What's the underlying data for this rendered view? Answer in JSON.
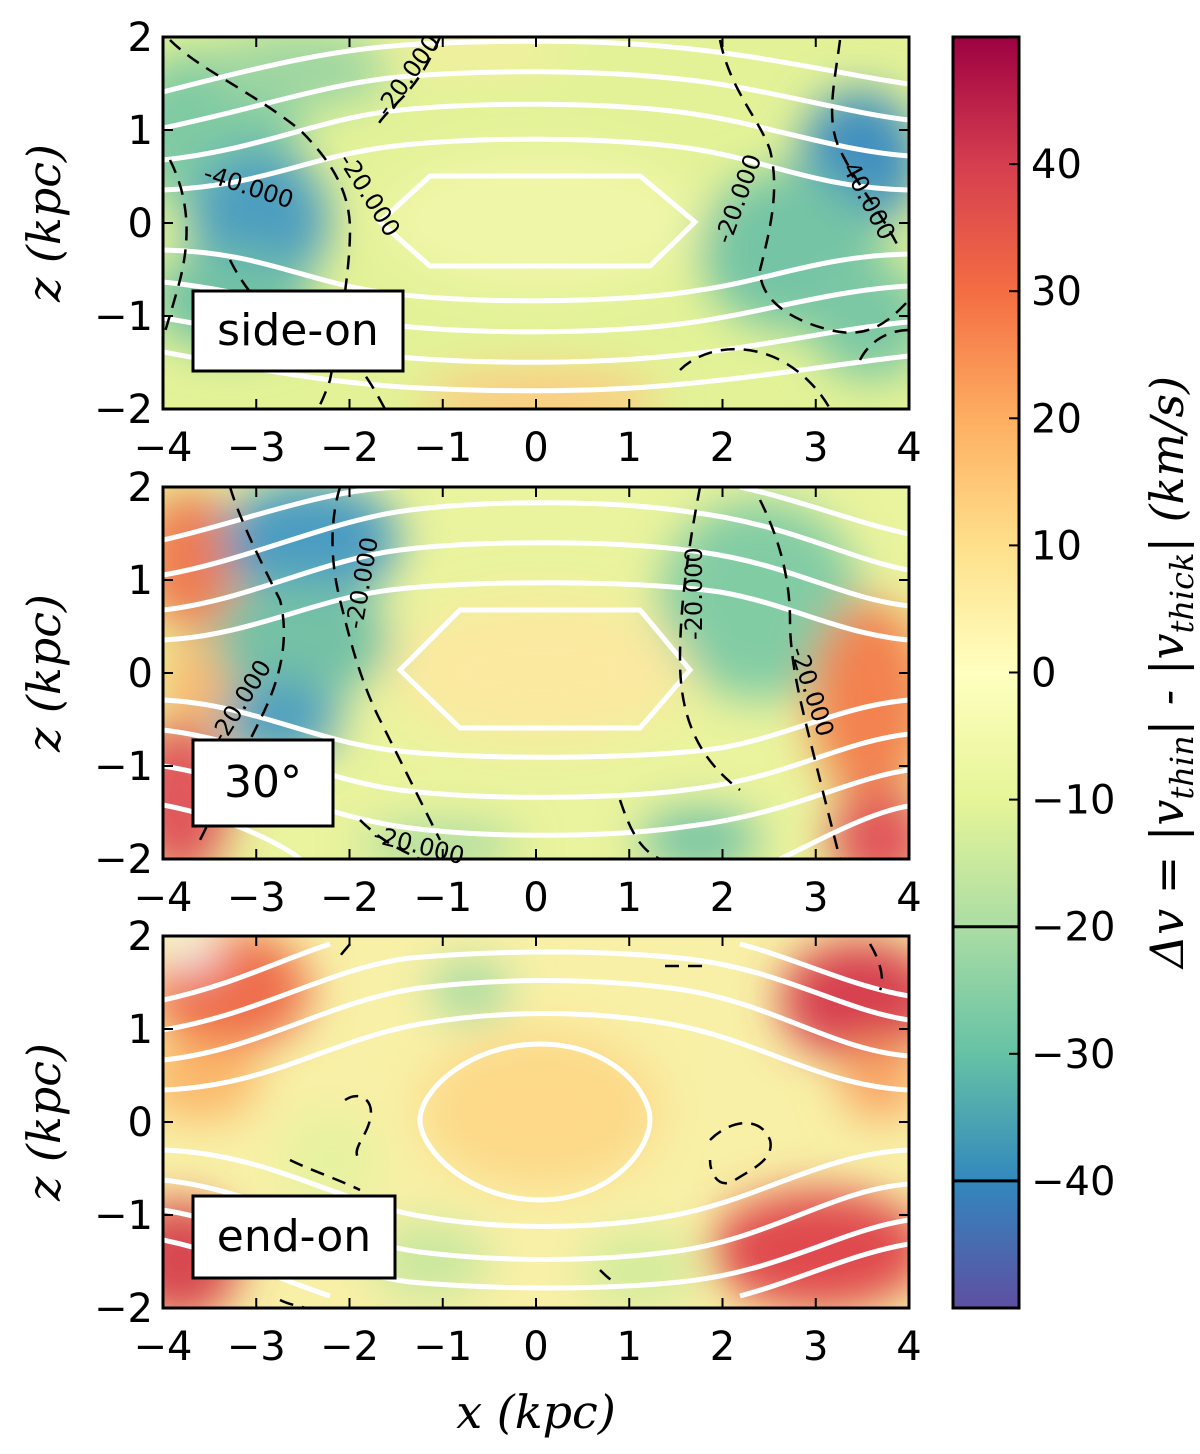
{
  "chart_data": {
    "type": "heatmap",
    "xlabel": "x (kpc)",
    "ylabel": "z (kpc)",
    "xlim": [
      -4,
      4
    ],
    "ylim": [
      -2,
      2
    ],
    "x_ticks": [
      "−4",
      "−3",
      "−2",
      "−1",
      "0",
      "1",
      "2",
      "3",
      "4"
    ],
    "y_ticks": [
      "−2",
      "−1",
      "0",
      "1",
      "2"
    ],
    "colorbar": {
      "label": "Δv = |v_thin| - |v_thick| (km/s)",
      "label_parts": [
        "Δv = |v",
        "thin",
        "| - |v",
        "thick",
        "| (km/s)"
      ],
      "range": [
        -50,
        50
      ],
      "ticks": [
        "40",
        "30",
        "20",
        "10",
        "0",
        "−10",
        "−20",
        "−30",
        "−40"
      ],
      "tick_values": [
        40,
        30,
        20,
        10,
        0,
        -10,
        -20,
        -30,
        -40
      ],
      "contour_levels": [
        -20,
        -40
      ],
      "colormap": [
        "#5e4fa2",
        "#3288bd",
        "#66c2a5",
        "#abdda4",
        "#e6f598",
        "#ffffbf",
        "#fee08b",
        "#fdae61",
        "#f46d43",
        "#d53e4f",
        "#9e0142"
      ]
    },
    "panels": [
      {
        "label": "side-on",
        "dashed_contour_labels": [
          "-20.000",
          "-20.000",
          "-20.000",
          "-40.000",
          "-40.000"
        ]
      },
      {
        "label": "30°",
        "dashed_contour_labels": [
          "-20.000",
          "-20.000",
          "-20.000",
          "-20.000",
          "-20.000",
          "-20.000"
        ]
      },
      {
        "label": "end-on",
        "dashed_contour_labels": []
      }
    ]
  }
}
